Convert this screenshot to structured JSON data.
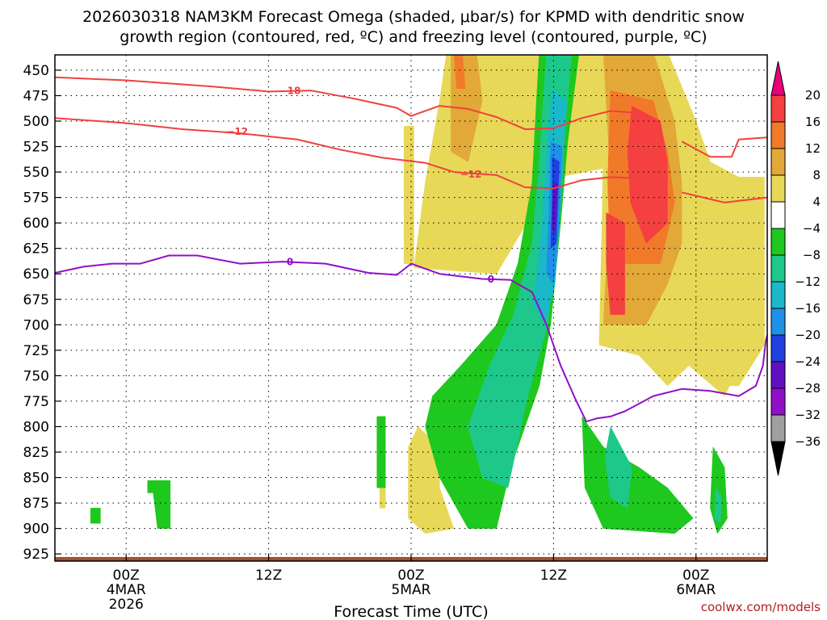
{
  "chart_data": {
    "type": "heatmap",
    "title_line1": "2026030318 NAM3KM Forecast Omega (shaded, μbar/s) for KPMD with dendritic snow",
    "title_line2": "growth region (contoured, red, ºC) and freezing level (contoured, purple, ºC)",
    "xlabel": "Forecast Time (UTC)",
    "ylabel": "",
    "credit": "coolwx.com/models",
    "x_range_hours": [
      -5,
      45
    ],
    "y_range_hpa": [
      435,
      932
    ],
    "y_ticks": [
      450,
      475,
      500,
      525,
      550,
      575,
      600,
      625,
      650,
      675,
      700,
      725,
      750,
      775,
      800,
      825,
      850,
      875,
      900,
      925
    ],
    "x_ticks": [
      {
        "hour": 0,
        "lines": [
          "00Z",
          "4MAR",
          "2026"
        ]
      },
      {
        "hour": 10,
        "lines": [
          "12Z"
        ]
      },
      {
        "hour": 20,
        "lines": [
          "00Z",
          "5MAR"
        ]
      },
      {
        "hour": 30,
        "lines": [
          "12Z"
        ]
      },
      {
        "hour": 40,
        "lines": [
          "00Z",
          "6MAR"
        ]
      }
    ],
    "colorbar": {
      "labels": [
        "20",
        "16",
        "12",
        "8",
        "4",
        "−4",
        "−8",
        "−12",
        "−16",
        "−20",
        "−24",
        "−28",
        "−32",
        "−36"
      ],
      "bins": [
        {
          "lo": 20,
          "hi": 99,
          "color": "#e8007a"
        },
        {
          "lo": 16,
          "hi": 20,
          "color": "#f44040"
        },
        {
          "lo": 12,
          "hi": 16,
          "color": "#f07a2a"
        },
        {
          "lo": 8,
          "hi": 12,
          "color": "#e2a838"
        },
        {
          "lo": 4,
          "hi": 8,
          "color": "#e8d858"
        },
        {
          "lo": -4,
          "hi": 4,
          "color": "#ffffff"
        },
        {
          "lo": -8,
          "hi": -4,
          "color": "#1ec81e"
        },
        {
          "lo": -12,
          "hi": -8,
          "color": "#1ec88a"
        },
        {
          "lo": -16,
          "hi": -12,
          "color": "#1ab8c8"
        },
        {
          "lo": -20,
          "hi": -16,
          "color": "#1e90e8"
        },
        {
          "lo": -24,
          "hi": -20,
          "color": "#2040e0"
        },
        {
          "lo": -28,
          "hi": -24,
          "color": "#6010c0"
        },
        {
          "lo": -32,
          "hi": -28,
          "color": "#9010c8"
        },
        {
          "lo": -36,
          "hi": -32,
          "color": "#a0a0a0"
        },
        {
          "lo": -99,
          "hi": -36,
          "color": "#000000"
        }
      ]
    },
    "omega_regions": [
      {
        "value": 6,
        "points": [
          [
            22.5,
            432
          ],
          [
            32.5,
            432
          ],
          [
            34.5,
            470
          ],
          [
            34,
            545
          ],
          [
            30,
            556
          ],
          [
            26,
            650
          ],
          [
            20.2,
            644
          ],
          [
            21,
            560
          ],
          [
            22,
            480
          ]
        ]
      },
      {
        "value": 10,
        "points": [
          [
            22.8,
            432
          ],
          [
            24.6,
            432
          ],
          [
            25,
            480
          ],
          [
            24,
            540
          ],
          [
            22.8,
            530
          ]
        ]
      },
      {
        "value": 14,
        "points": [
          [
            23,
            432
          ],
          [
            23.6,
            432
          ],
          [
            23.8,
            468
          ],
          [
            23.2,
            468
          ]
        ]
      },
      {
        "value": 6,
        "points": [
          [
            32.5,
            432
          ],
          [
            38,
            432
          ],
          [
            40,
            500
          ],
          [
            41,
            540
          ],
          [
            43,
            555
          ],
          [
            44.5,
            580
          ],
          [
            44.2,
            650
          ],
          [
            44.5,
            700
          ],
          [
            42,
            770
          ],
          [
            39.5,
            740
          ],
          [
            38,
            760
          ],
          [
            36,
            730
          ],
          [
            33.2,
            720
          ],
          [
            33.4,
            600
          ],
          [
            33.5,
            520
          ]
        ]
      },
      {
        "value": 10,
        "points": [
          [
            33.5,
            432
          ],
          [
            37,
            432
          ],
          [
            38.5,
            500
          ],
          [
            39,
            560
          ],
          [
            39,
            620
          ],
          [
            38,
            660
          ],
          [
            36.5,
            700
          ],
          [
            33.5,
            700
          ],
          [
            34,
            560
          ]
        ]
      },
      {
        "value": 14,
        "points": [
          [
            34,
            470
          ],
          [
            37,
            480
          ],
          [
            38,
            530
          ],
          [
            38.5,
            580
          ],
          [
            37.5,
            640
          ],
          [
            34,
            640
          ],
          [
            33.8,
            560
          ]
        ]
      },
      {
        "value": 18,
        "points": [
          [
            35.5,
            485
          ],
          [
            37.5,
            500
          ],
          [
            38,
            540
          ],
          [
            38,
            600
          ],
          [
            36.5,
            620
          ],
          [
            35.4,
            580
          ],
          [
            35.2,
            530
          ]
        ]
      },
      {
        "value": 18,
        "points": [
          [
            33.7,
            590
          ],
          [
            35,
            600
          ],
          [
            35,
            690
          ],
          [
            34,
            690
          ],
          [
            33.7,
            640
          ]
        ]
      },
      {
        "value": 10,
        "points": [
          [
            43.5,
            635
          ],
          [
            44.6,
            630
          ],
          [
            44.6,
            670
          ],
          [
            43.5,
            665
          ]
        ]
      },
      {
        "value": 6,
        "points": [
          [
            20.5,
            800
          ],
          [
            22,
            820
          ],
          [
            22,
            860
          ],
          [
            23,
            900
          ],
          [
            21,
            905
          ],
          [
            19.8,
            890
          ],
          [
            19.8,
            820
          ]
        ]
      },
      {
        "value": 6,
        "points": [
          [
            17.8,
            810
          ],
          [
            18.2,
            810
          ],
          [
            18.2,
            880
          ],
          [
            17.8,
            880
          ]
        ]
      },
      {
        "value": 6,
        "points": [
          [
            19.5,
            505
          ],
          [
            20.2,
            505
          ],
          [
            20.2,
            640
          ],
          [
            19.5,
            640
          ]
        ]
      },
      {
        "value": 6,
        "points": [
          [
            42.5,
            555
          ],
          [
            44.8,
            555
          ],
          [
            44.8,
            720
          ],
          [
            43,
            760
          ],
          [
            41.5,
            760
          ],
          [
            42,
            650
          ]
        ]
      },
      {
        "value": -6,
        "points": [
          [
            29,
            432
          ],
          [
            31.8,
            432
          ],
          [
            31,
            520
          ],
          [
            30.5,
            600
          ],
          [
            29.8,
            700
          ],
          [
            29,
            760
          ],
          [
            27,
            840
          ],
          [
            26,
            900
          ],
          [
            24,
            900
          ],
          [
            22,
            850
          ],
          [
            21,
            800
          ],
          [
            21.5,
            770
          ],
          [
            23.5,
            740
          ],
          [
            26,
            700
          ],
          [
            27.5,
            640
          ],
          [
            28.5,
            560
          ],
          [
            28.8,
            480
          ]
        ]
      },
      {
        "value": -10,
        "points": [
          [
            29.5,
            432
          ],
          [
            31.3,
            432
          ],
          [
            30.8,
            510
          ],
          [
            30.2,
            600
          ],
          [
            29.6,
            700
          ],
          [
            28.2,
            770
          ],
          [
            26.8,
            860
          ],
          [
            25,
            850
          ],
          [
            24,
            800
          ],
          [
            25.5,
            740
          ],
          [
            27.2,
            690
          ],
          [
            28.5,
            620
          ],
          [
            29,
            540
          ]
        ]
      },
      {
        "value": -14,
        "points": [
          [
            29.9,
            470
          ],
          [
            30.9,
            480
          ],
          [
            30.6,
            560
          ],
          [
            30.1,
            660
          ],
          [
            29.4,
            700
          ],
          [
            28.6,
            680
          ],
          [
            29.2,
            600
          ],
          [
            29.5,
            530
          ]
        ]
      },
      {
        "value": -18,
        "points": [
          [
            29.8,
            520
          ],
          [
            30.6,
            525
          ],
          [
            30.4,
            600
          ],
          [
            30,
            660
          ],
          [
            29.5,
            650
          ],
          [
            29.7,
            580
          ]
        ]
      },
      {
        "value": -22,
        "points": [
          [
            29.9,
            535
          ],
          [
            30.4,
            540
          ],
          [
            30.2,
            620
          ],
          [
            29.8,
            625
          ],
          [
            29.9,
            580
          ]
        ]
      },
      {
        "value": -26,
        "points": [
          [
            30,
            560
          ],
          [
            30.3,
            562
          ],
          [
            30.1,
            610
          ],
          [
            29.9,
            605
          ]
        ]
      },
      {
        "value": -6,
        "points": [
          [
            32,
            790
          ],
          [
            33.5,
            820
          ],
          [
            36,
            840
          ],
          [
            38,
            860
          ],
          [
            39.8,
            890
          ],
          [
            38.5,
            905
          ],
          [
            33.5,
            900
          ],
          [
            32.2,
            860
          ]
        ]
      },
      {
        "value": -10,
        "points": [
          [
            34,
            800
          ],
          [
            35.5,
            840
          ],
          [
            35.2,
            880
          ],
          [
            34,
            870
          ],
          [
            33.6,
            830
          ]
        ]
      },
      {
        "value": -6,
        "points": [
          [
            41.2,
            820
          ],
          [
            42,
            840
          ],
          [
            42.2,
            890
          ],
          [
            41.5,
            905
          ],
          [
            41,
            880
          ]
        ]
      },
      {
        "value": -10,
        "points": [
          [
            41.4,
            860
          ],
          [
            41.8,
            870
          ],
          [
            41.7,
            895
          ],
          [
            41.3,
            890
          ]
        ]
      },
      {
        "value": -6,
        "points": [
          [
            1.5,
            853
          ],
          [
            3.1,
            853
          ],
          [
            3.1,
            900
          ],
          [
            2.2,
            900
          ],
          [
            1.9,
            865
          ],
          [
            1.5,
            865
          ]
        ]
      },
      {
        "value": -6,
        "points": [
          [
            -2.5,
            880
          ],
          [
            -1.8,
            880
          ],
          [
            -1.8,
            895
          ],
          [
            -2.5,
            895
          ]
        ]
      },
      {
        "value": -6,
        "points": [
          [
            17.6,
            790
          ],
          [
            18.2,
            790
          ],
          [
            18.2,
            860
          ],
          [
            17.6,
            860
          ]
        ]
      }
    ],
    "contours": [
      {
        "value": -18,
        "color": "#f04040",
        "label": "−18",
        "label_at": [
          11.5,
          470
        ],
        "points": [
          [
            -5,
            457
          ],
          [
            0,
            460
          ],
          [
            6,
            466
          ],
          [
            10,
            471
          ],
          [
            13,
            470
          ],
          [
            16,
            478
          ],
          [
            19,
            487
          ],
          [
            20,
            495
          ],
          [
            22,
            485
          ],
          [
            24,
            488
          ],
          [
            26,
            496
          ],
          [
            28,
            508
          ],
          [
            30,
            507
          ],
          [
            32,
            497
          ],
          [
            34,
            490
          ],
          [
            36,
            492
          ]
        ]
      },
      {
        "value": -12,
        "points": [
          [
            -5,
            497
          ],
          [
            0,
            502
          ],
          [
            4,
            508
          ],
          [
            8,
            512
          ],
          [
            12,
            518
          ],
          [
            15,
            528
          ],
          [
            18,
            536
          ],
          [
            21,
            541
          ],
          [
            23,
            550
          ],
          [
            26,
            553
          ],
          [
            28,
            565
          ],
          [
            30,
            566
          ],
          [
            32,
            558
          ],
          [
            34,
            555
          ],
          [
            37,
            557
          ]
        ],
        "color": "#f04040",
        "label": "−12",
        "label_at": [
          [
            7.8,
            510
          ],
          [
            24.2,
            552
          ]
        ]
      },
      {
        "value": -12,
        "points": [
          [
            39,
            570
          ],
          [
            42,
            580
          ],
          [
            45,
            575
          ]
        ],
        "color": "#f04040",
        "label": "",
        "label_at": []
      },
      {
        "value": -18,
        "points": [
          [
            39,
            520
          ],
          [
            41,
            535
          ],
          [
            42.5,
            535
          ],
          [
            43,
            518
          ],
          [
            45,
            516
          ]
        ],
        "color": "#f04040",
        "label": "",
        "label_at": []
      },
      {
        "value": 0,
        "color": "#9010c8",
        "label": "0",
        "label_at": [
          [
            11.5,
            638
          ],
          [
            25.6,
            655
          ]
        ],
        "points": [
          [
            -5,
            649
          ],
          [
            -3,
            643
          ],
          [
            -1,
            640
          ],
          [
            1,
            640
          ],
          [
            3,
            632
          ],
          [
            5,
            632
          ],
          [
            8,
            640
          ],
          [
            11,
            638
          ],
          [
            14,
            640
          ],
          [
            17,
            649
          ],
          [
            19,
            651
          ],
          [
            20,
            640
          ],
          [
            22,
            650
          ],
          [
            25,
            655
          ],
          [
            27,
            656
          ],
          [
            28.5,
            668
          ],
          [
            29.5,
            700
          ],
          [
            30.5,
            740
          ],
          [
            31.5,
            772
          ],
          [
            32.3,
            795
          ],
          [
            33,
            792
          ],
          [
            34,
            790
          ],
          [
            35,
            785
          ],
          [
            37,
            770
          ],
          [
            39,
            763
          ],
          [
            41,
            765
          ],
          [
            43,
            770
          ],
          [
            44.2,
            760
          ],
          [
            44.7,
            740
          ],
          [
            44.9,
            716
          ],
          [
            45,
            710
          ]
        ]
      }
    ],
    "terrain_surface_hpa": 928
  }
}
